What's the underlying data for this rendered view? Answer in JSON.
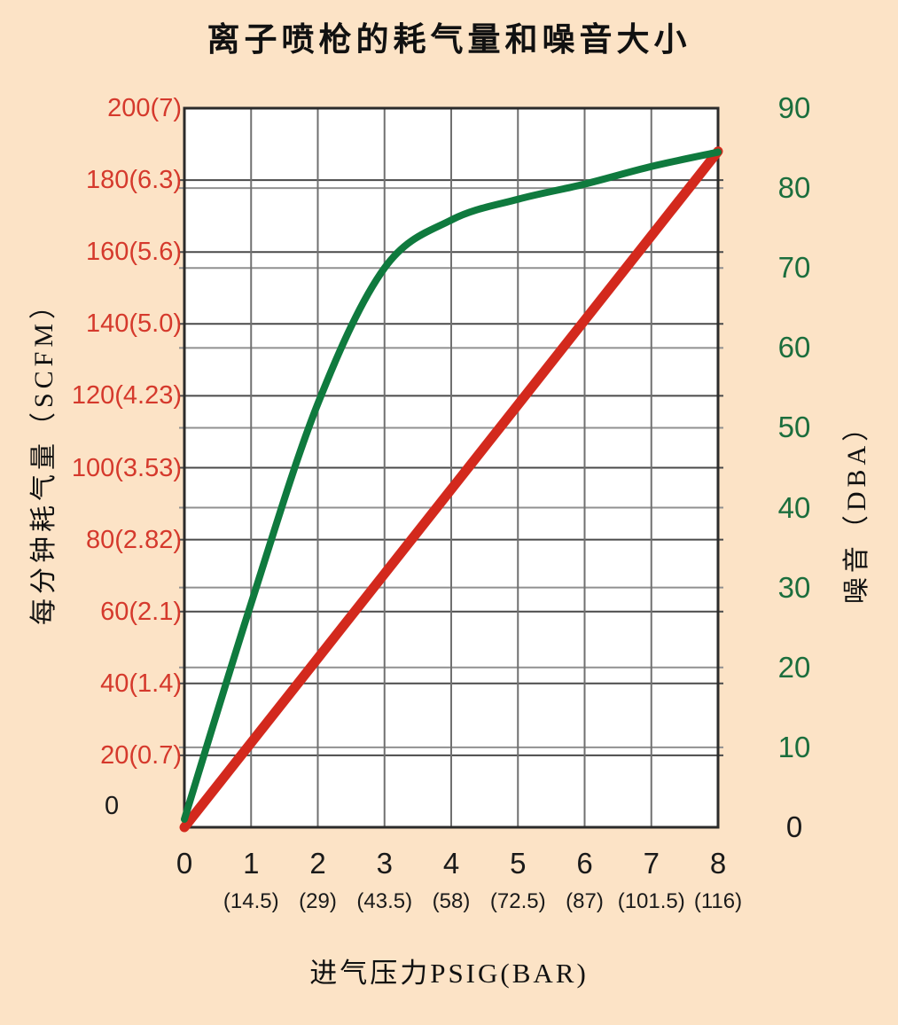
{
  "title": "离子喷枪的耗气量和噪音大小",
  "colors": {
    "background": "#fce3c6",
    "plot_background": "#ffffff",
    "frame": "#2b2b2b",
    "grid_left_axis": "#4a4a4a",
    "grid_right_axis": "#909090",
    "grid_vertical": "#707070",
    "red_line": "#d3291d",
    "red_text": "#d5392c",
    "green_line": "#0f7a3e",
    "green_text": "#1b6e3d",
    "black_text": "#1a1a1a"
  },
  "chart_data": {
    "type": "line",
    "title": "离子喷枪的耗气量和噪音大小",
    "xlabel": "进气压力PSIG(BAR)",
    "x_values": [
      0,
      1,
      2,
      3,
      4,
      5,
      6,
      7,
      8
    ],
    "x_tick_labels": [
      "0",
      "1",
      "2",
      "3",
      "4",
      "5",
      "6",
      "7",
      "8"
    ],
    "x_tick_sublabels": [
      "",
      "(14.5)",
      "(29)",
      "(43.5)",
      "(58)",
      "(72.5)",
      "(87)",
      "(101.5)",
      "(116)"
    ],
    "x_range": [
      0,
      8
    ],
    "grid": true,
    "legend_position": "none",
    "left_axis": {
      "label": "每分钟耗气量（SCFM）",
      "range": [
        0,
        200
      ],
      "ticks": [
        0,
        20,
        40,
        60,
        80,
        100,
        120,
        140,
        160,
        180,
        200
      ],
      "tick_labels": [
        "0",
        "20(0.7)",
        "40(1.4)",
        "60(2.1)",
        "80(2.82)",
        "100(3.53)",
        "120(4.23)",
        "140(5.0)",
        "160(5.6)",
        "180(6.3)",
        "200(7)"
      ]
    },
    "right_axis": {
      "label": "噪音（DBA）",
      "range": [
        0,
        90
      ],
      "ticks": [
        0,
        10,
        20,
        30,
        40,
        50,
        60,
        70,
        80,
        90
      ],
      "tick_labels": [
        "0",
        "10",
        "20",
        "30",
        "40",
        "50",
        "60",
        "70",
        "80",
        "90"
      ]
    },
    "series": [
      {
        "name": "每分钟耗气量",
        "axis": "left",
        "color_key": "red_line",
        "line_width": 11,
        "smooth": false,
        "values": [
          0,
          23.5,
          47,
          70.5,
          94,
          117.5,
          141,
          164.5,
          188
        ]
      },
      {
        "name": "噪音",
        "axis": "right",
        "color_key": "green_line",
        "line_width": 8,
        "smooth": true,
        "values": [
          1,
          28,
          53,
          70,
          76,
          78.6,
          80.5,
          82.7,
          84.5
        ]
      }
    ]
  }
}
